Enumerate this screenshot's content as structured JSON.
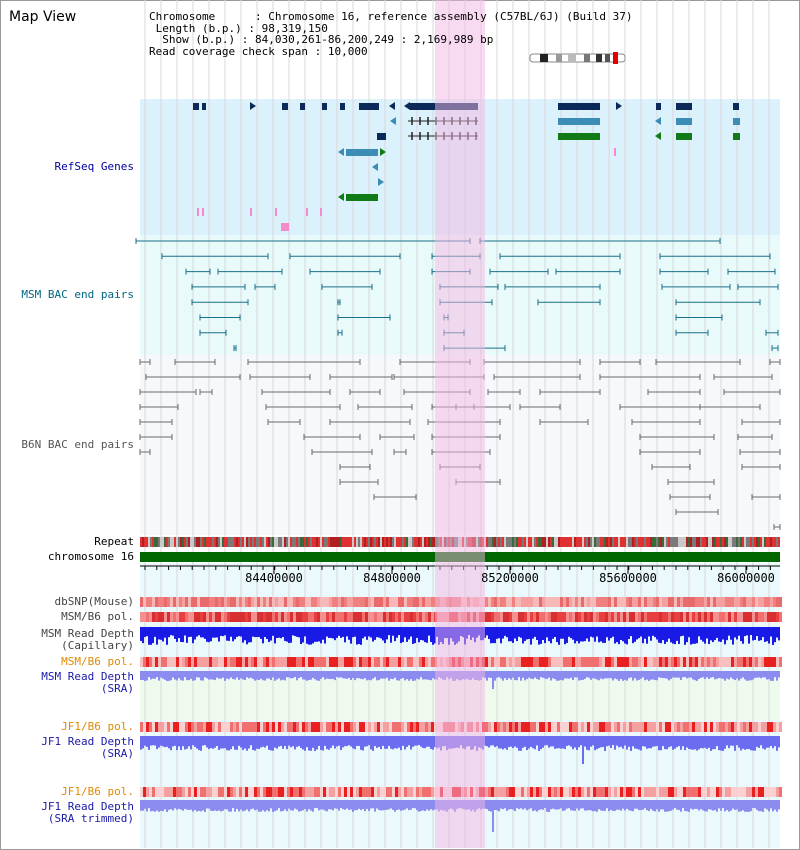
{
  "page": {
    "title": "Map View"
  },
  "header": {
    "chromosome_key": "Chromosome",
    "chromosome_val": "Chromosome 16, reference assembly (C57BL/6J) (Build 37)",
    "length_key": "Length (b.p.)",
    "length_val": "98,319,150",
    "show_key": "Show (b.p.)",
    "show_val": "84,030,261-86,200,249 : 2,169,989 bp",
    "span_key": "Read coverage check span",
    "span_val": "10,000"
  },
  "tracks": {
    "refseq": "RefSeq Genes",
    "msm_bac": "MSM BAC end pairs",
    "b6n_bac": "B6N BAC end pairs",
    "repeat": "Repeat",
    "chromosome": "chromosome 16",
    "dbsnp": "dbSNP(Mouse)",
    "msm_b6_pol": "MSM/B6 pol.",
    "msm_depth_cap_1": "MSM Read Depth",
    "msm_depth_cap_2": "(Capillary)",
    "msm_b6_pol_sra": "MSM/B6 pol.",
    "msm_depth_sra_1": "MSM Read Depth",
    "msm_depth_sra_2": "(SRA)",
    "jf1_b6_pol": "JF1/B6 pol.",
    "jf1_depth_sra_1": "JF1 Read Depth",
    "jf1_depth_sra_2": "(SRA)",
    "jf1_b6_pol_trim": "JF1/B6 pol.",
    "jf1_depth_trim_1": "JF1 Read Depth",
    "jf1_depth_trim_2": "(SRA trimmed)"
  },
  "axis": {
    "ticks": [
      "84400000",
      "84800000",
      "85200000",
      "85600000",
      "86000000"
    ]
  },
  "colors": {
    "refseq_bg": "#dbf1fb",
    "bac_bg": "#e8fafa",
    "gene_navy": "#0b2a5a",
    "gene_teal": "#3b8db6",
    "gene_green": "#0f7a16",
    "chromosome_bar": "#006600",
    "highlight": "#f4b8e4",
    "depth_blue": "#1a1ae6",
    "depth_light": "#8c8cf0"
  }
}
